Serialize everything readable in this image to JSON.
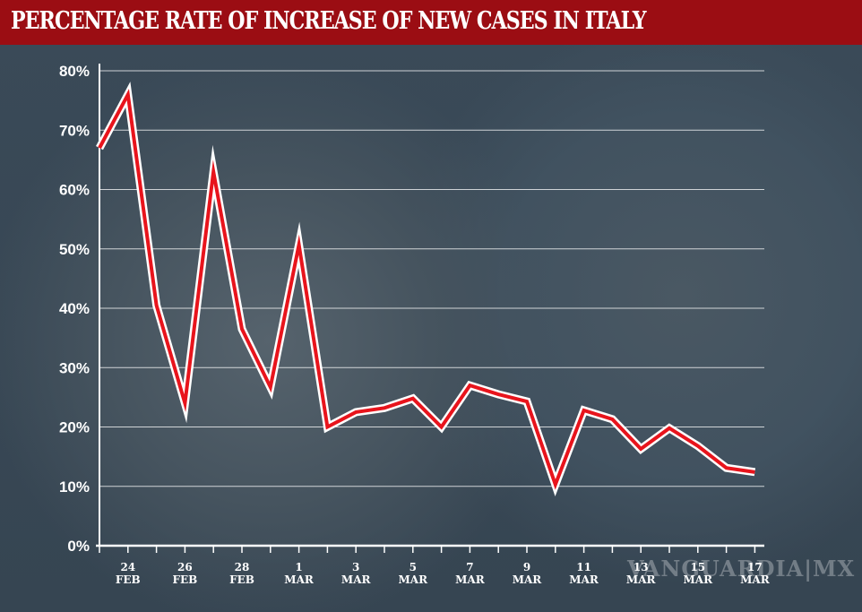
{
  "header": {
    "title": "PERCENTAGE RATE OF INCREASE OF NEW CASES IN ITALY"
  },
  "watermark": "VANGUARDIA|MX",
  "colors": {
    "header": "#9b0d13",
    "line": "#e8141c",
    "outline": "#ffffff",
    "background": "#3b4b59"
  },
  "chart_data": {
    "type": "line",
    "title": "PERCENTAGE RATE OF INCREASE OF NEW CASES IN ITALY",
    "xlabel": "",
    "ylabel": "",
    "ylim": [
      0,
      80
    ],
    "yticks": [
      "0%",
      "10%",
      "20%",
      "30%",
      "40%",
      "50%",
      "60%",
      "70%",
      "80%"
    ],
    "grid": true,
    "x": [
      "23 Feb",
      "24 Feb",
      "25 Feb",
      "26 Feb",
      "27 Feb",
      "28 Feb",
      "29 Feb",
      "1 Mar",
      "2 Mar",
      "3 Mar",
      "4 Mar",
      "5 Mar",
      "6 Mar",
      "7 Mar",
      "8 Mar",
      "9 Mar",
      "10 Mar",
      "11 Mar",
      "12 Mar",
      "13 Mar",
      "14 Mar",
      "15 Mar",
      "16 Mar",
      "17 Mar"
    ],
    "xtick_labels": [
      {
        "index": 1,
        "day": "24",
        "month": "FEB"
      },
      {
        "index": 3,
        "day": "26",
        "month": "FEB"
      },
      {
        "index": 5,
        "day": "28",
        "month": "FEB"
      },
      {
        "index": 7,
        "day": "1",
        "month": "MAR"
      },
      {
        "index": 9,
        "day": "3",
        "month": "MAR"
      },
      {
        "index": 11,
        "day": "5",
        "month": "MAR"
      },
      {
        "index": 13,
        "day": "7",
        "month": "MAR"
      },
      {
        "index": 15,
        "day": "9",
        "month": "MAR"
      },
      {
        "index": 17,
        "day": "11",
        "month": "MAR"
      },
      {
        "index": 19,
        "day": "13",
        "month": "MAR"
      },
      {
        "index": 21,
        "day": "15",
        "month": "MAR"
      },
      {
        "index": 23,
        "day": "17",
        "month": "MAR"
      }
    ],
    "values": [
      67,
      76,
      40.5,
      24,
      63,
      36.5,
      26.7,
      50.7,
      20,
      22.5,
      23.2,
      24.8,
      20,
      27,
      25.5,
      24.3,
      10.3,
      22.8,
      21.3,
      16.3,
      19.8,
      16.8,
      13.1,
      12.4
    ]
  }
}
